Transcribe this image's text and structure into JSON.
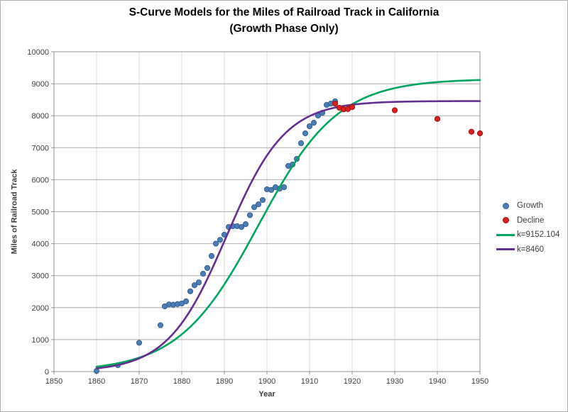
{
  "chart_data": {
    "type": "scatter",
    "title": "S-Curve Models for the Miles of Railroad Track in California",
    "subtitle": "(Growth Phase Only)",
    "xlabel": "Year",
    "ylabel": "Miles of Railroad Track",
    "xlim": [
      1850,
      1950
    ],
    "xtick_step": 10,
    "ylim": [
      0,
      10000
    ],
    "ytick_step": 1000,
    "grid": true,
    "legend_position": "right-outside",
    "colors": {
      "growth_fill": "#4a7ebb",
      "growth_edge": "#35608f",
      "decline_fill": "#df1f1f",
      "decline_edge": "#9d1010",
      "green_line": "#00a65e",
      "purple_line": "#642d91",
      "h_grid": "#ababab",
      "v_grid": "#d8d8d8",
      "axis": "#8f8f8f"
    },
    "series": [
      {
        "name": "Growth",
        "type": "scatter",
        "marker": "circle",
        "color": "#4a7ebb",
        "edge": "#35608f",
        "points": [
          [
            1860,
            20
          ],
          [
            1865,
            200
          ],
          [
            1870,
            900
          ],
          [
            1875,
            1450
          ],
          [
            1876,
            2040
          ],
          [
            1877,
            2100
          ],
          [
            1878,
            2090
          ],
          [
            1879,
            2110
          ],
          [
            1880,
            2130
          ],
          [
            1881,
            2195
          ],
          [
            1882,
            2510
          ],
          [
            1883,
            2700
          ],
          [
            1884,
            2790
          ],
          [
            1885,
            3060
          ],
          [
            1886,
            3240
          ],
          [
            1887,
            3615
          ],
          [
            1888,
            4000
          ],
          [
            1889,
            4120
          ],
          [
            1890,
            4280
          ],
          [
            1891,
            4520
          ],
          [
            1892,
            4545
          ],
          [
            1893,
            4545
          ],
          [
            1894,
            4520
          ],
          [
            1895,
            4610
          ],
          [
            1896,
            4890
          ],
          [
            1897,
            5140
          ],
          [
            1898,
            5230
          ],
          [
            1899,
            5365
          ],
          [
            1900,
            5700
          ],
          [
            1901,
            5680
          ],
          [
            1902,
            5765
          ],
          [
            1903,
            5720
          ],
          [
            1904,
            5765
          ],
          [
            1905,
            6430
          ],
          [
            1906,
            6475
          ],
          [
            1907,
            6650
          ],
          [
            1908,
            7140
          ],
          [
            1909,
            7450
          ],
          [
            1910,
            7670
          ],
          [
            1911,
            7780
          ],
          [
            1912,
            8005
          ],
          [
            1913,
            8090
          ],
          [
            1914,
            8340
          ],
          [
            1915,
            8380
          ],
          [
            1916,
            8450
          ]
        ]
      },
      {
        "name": "Decline",
        "type": "scatter",
        "marker": "circle",
        "color": "#df1f1f",
        "edge": "#9d1010",
        "points": [
          [
            1916,
            8380
          ],
          [
            1917,
            8250
          ],
          [
            1918,
            8200
          ],
          [
            1919,
            8210
          ],
          [
            1920,
            8270
          ],
          [
            1930,
            8170
          ],
          [
            1940,
            7900
          ],
          [
            1948,
            7500
          ],
          [
            1950,
            7450
          ]
        ]
      },
      {
        "name": "k=9152.104",
        "type": "logistic-curve",
        "color": "#00a65e",
        "k": 9152.104,
        "t0": 1898,
        "r": 0.107,
        "t_start": 1860,
        "t_end": 1950
      },
      {
        "name": "k=8460",
        "type": "logistic-curve",
        "color": "#642d91",
        "k": 8460,
        "t0": 1890.5,
        "r": 0.145,
        "t_start": 1860,
        "t_end": 1950
      }
    ]
  }
}
